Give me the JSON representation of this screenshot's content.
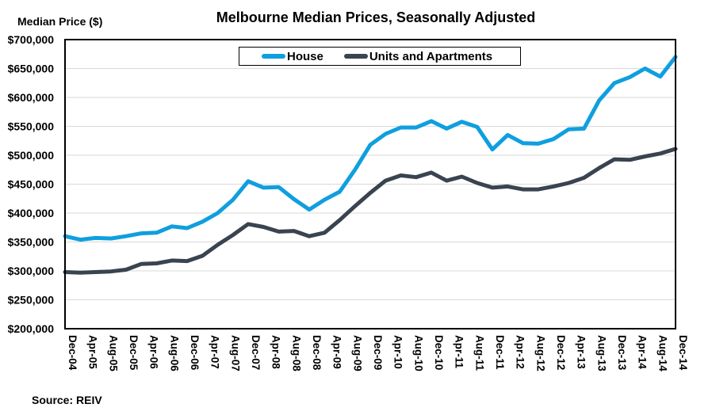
{
  "chart_data": {
    "type": "line",
    "title": "Melbourne Median Prices, Seasonally Adjusted",
    "ylabel": "Median Price ($)",
    "xlabel": "",
    "source": "Source:  REIV",
    "ylim": [
      200000,
      700000
    ],
    "y_ticks": [
      200000,
      250000,
      300000,
      350000,
      400000,
      450000,
      500000,
      550000,
      600000,
      650000,
      700000
    ],
    "y_tick_labels": [
      "$200,000",
      "$250,000",
      "$300,000",
      "$350,000",
      "$400,000",
      "$450,000",
      "$500,000",
      "$550,000",
      "$600,000",
      "$650,000",
      "$700,000"
    ],
    "x_unit": "months since Dec-04",
    "xlim": [
      0,
      120
    ],
    "x_tick_months": [
      0,
      4,
      8,
      12,
      16,
      20,
      24,
      28,
      32,
      36,
      40,
      44,
      48,
      52,
      56,
      60,
      64,
      68,
      72,
      76,
      80,
      84,
      88,
      92,
      96,
      100,
      104,
      108,
      112,
      116,
      120
    ],
    "x_tick_labels": [
      "Dec-04",
      "Apr-05",
      "Aug-05",
      "Dec-05",
      "Apr-06",
      "Aug-06",
      "Dec-06",
      "Apr-07",
      "Aug-07",
      "Dec-07",
      "Apr-08",
      "Aug-08",
      "Dec-08",
      "Apr-09",
      "Aug-09",
      "Dec-09",
      "Apr-10",
      "Aug-10",
      "Dec-10",
      "Apr-11",
      "Aug-11",
      "Dec-11",
      "Apr-12",
      "Aug-12",
      "Dec-12",
      "Apr-13",
      "Aug-13",
      "Dec-13",
      "Apr-14",
      "Aug-14",
      "Dec-14"
    ],
    "x": [
      0,
      3,
      6,
      9,
      12,
      15,
      18,
      21,
      24,
      27,
      30,
      33,
      36,
      39,
      42,
      45,
      48,
      51,
      54,
      57,
      60,
      63,
      66,
      69,
      72,
      75,
      78,
      81,
      84,
      87,
      90,
      93,
      96,
      99,
      102,
      105,
      108,
      111,
      114,
      117,
      120
    ],
    "grid": "horizontal",
    "legend_position": "top-center",
    "series": [
      {
        "name": "House",
        "color": "#0f9fde",
        "values": [
          360000,
          354000,
          357000,
          356000,
          360000,
          365000,
          366000,
          377000,
          374000,
          385000,
          400000,
          423000,
          455000,
          444000,
          445000,
          424000,
          406000,
          423000,
          437000,
          475000,
          518000,
          537000,
          548000,
          548000,
          559000,
          546000,
          558000,
          549000,
          510000,
          535000,
          521000,
          520000,
          528000,
          545000,
          546000,
          595000,
          625000,
          635000,
          650000,
          636000,
          670000
        ]
      },
      {
        "name": "Units and Apartments",
        "color": "#3a4350",
        "values": [
          298000,
          297000,
          298000,
          299000,
          302000,
          312000,
          313000,
          318000,
          317000,
          326000,
          345000,
          362000,
          381000,
          376000,
          368000,
          369000,
          360000,
          366000,
          388000,
          412000,
          435000,
          456000,
          465000,
          462000,
          470000,
          456000,
          463000,
          452000,
          444000,
          446000,
          441000,
          441000,
          446000,
          452000,
          461000,
          478000,
          493000,
          492000,
          498000,
          503000,
          511000
        ]
      }
    ]
  }
}
